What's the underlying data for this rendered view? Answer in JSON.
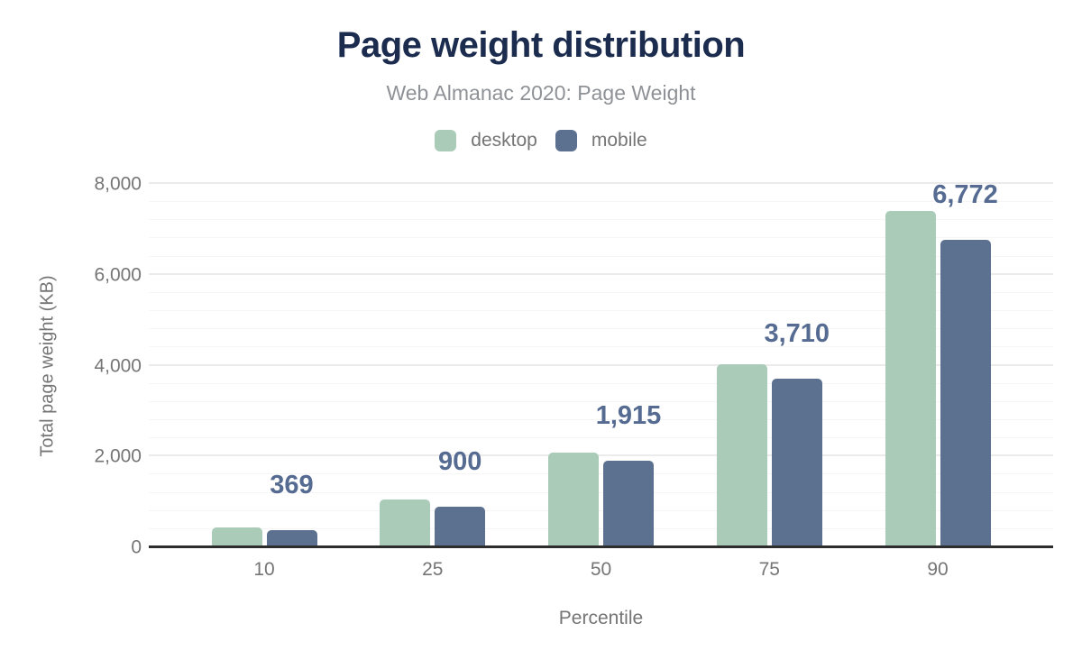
{
  "title": "Page weight distribution",
  "subtitle": "Web Almanac 2020: Page Weight",
  "legend": {
    "items": [
      {
        "label": "desktop",
        "color": "#a9cbb8"
      },
      {
        "label": "mobile",
        "color": "#5c7090"
      }
    ]
  },
  "colors": {
    "title_text": "#1b2c4f",
    "subtitle_text": "#8e9296",
    "axis_text": "#757575",
    "desktop_series": "#a9cbb8",
    "mobile_series": "#5c7090",
    "value_label_text": "#566b92",
    "major_gridline": "#ebebeb",
    "minor_gridline": "#f5f5f5",
    "axis_line": "#2d2d2d",
    "background": "#ffffff"
  },
  "chart_data": {
    "type": "bar",
    "title": "Page weight distribution",
    "subtitle": "Web Almanac 2020: Page Weight",
    "xlabel": "Percentile",
    "ylabel": "Total page weight (KB)",
    "categories": [
      "10",
      "25",
      "50",
      "75",
      "90"
    ],
    "series": [
      {
        "name": "desktop",
        "color": "#a9cbb8",
        "values": [
          433,
          1050,
          2080,
          4028,
          7407
        ]
      },
      {
        "name": "mobile",
        "color": "#5c7090",
        "values": [
          369,
          900,
          1915,
          3710,
          6772
        ]
      }
    ],
    "data_labels": {
      "series": "mobile",
      "values": [
        "369",
        "900",
        "1,915",
        "3,710",
        "6,772"
      ],
      "color": "#566b92"
    },
    "ylim": [
      0,
      8000
    ],
    "y_ticks": [
      "0",
      "2,000",
      "4,000",
      "6,000",
      "8,000"
    ],
    "y_tick_values": [
      0,
      2000,
      4000,
      6000,
      8000
    ],
    "major_grid_step": 2000,
    "minor_grid_step": 400,
    "grid": "horizontal",
    "legend_position": "top"
  }
}
